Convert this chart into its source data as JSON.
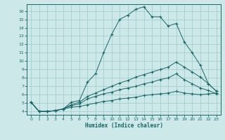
{
  "xlabel": "Humidex (Indice chaleur)",
  "xlim": [
    -0.5,
    23.5
  ],
  "ylim": [
    3.6,
    16.8
  ],
  "xticks": [
    0,
    1,
    2,
    3,
    4,
    5,
    6,
    7,
    8,
    9,
    10,
    11,
    12,
    13,
    14,
    15,
    16,
    17,
    18,
    19,
    20,
    21,
    22,
    23
  ],
  "yticks": [
    4,
    5,
    6,
    7,
    8,
    9,
    10,
    11,
    12,
    13,
    14,
    15,
    16
  ],
  "bg_color": "#cce8e8",
  "grid_color": "#9dc8c8",
  "line_color": "#1a6666",
  "line1_y": [
    5.1,
    4.0,
    4.0,
    4.1,
    4.3,
    5.1,
    5.3,
    7.5,
    8.5,
    11.0,
    13.2,
    15.0,
    15.5,
    16.2,
    16.5,
    15.3,
    15.3,
    14.2,
    14.5,
    12.3,
    11.0,
    9.5,
    7.3,
    6.4
  ],
  "line2_y": [
    5.1,
    4.0,
    4.0,
    4.1,
    4.3,
    4.8,
    5.1,
    5.8,
    6.2,
    6.6,
    7.0,
    7.4,
    7.7,
    8.1,
    8.4,
    8.7,
    9.0,
    9.3,
    9.9,
    9.3,
    8.7,
    8.1,
    7.3,
    6.4
  ],
  "line3_y": [
    5.1,
    4.0,
    4.0,
    4.1,
    4.3,
    4.7,
    4.9,
    5.5,
    5.8,
    6.1,
    6.3,
    6.6,
    6.8,
    7.0,
    7.3,
    7.5,
    7.8,
    8.0,
    8.5,
    7.8,
    7.3,
    6.8,
    6.5,
    6.1
  ],
  "line4_y": [
    5.1,
    4.0,
    4.0,
    4.1,
    4.3,
    4.5,
    4.6,
    4.8,
    5.0,
    5.2,
    5.3,
    5.5,
    5.6,
    5.7,
    5.9,
    6.0,
    6.1,
    6.2,
    6.4,
    6.2,
    6.1,
    6.0,
    6.1,
    6.2
  ]
}
